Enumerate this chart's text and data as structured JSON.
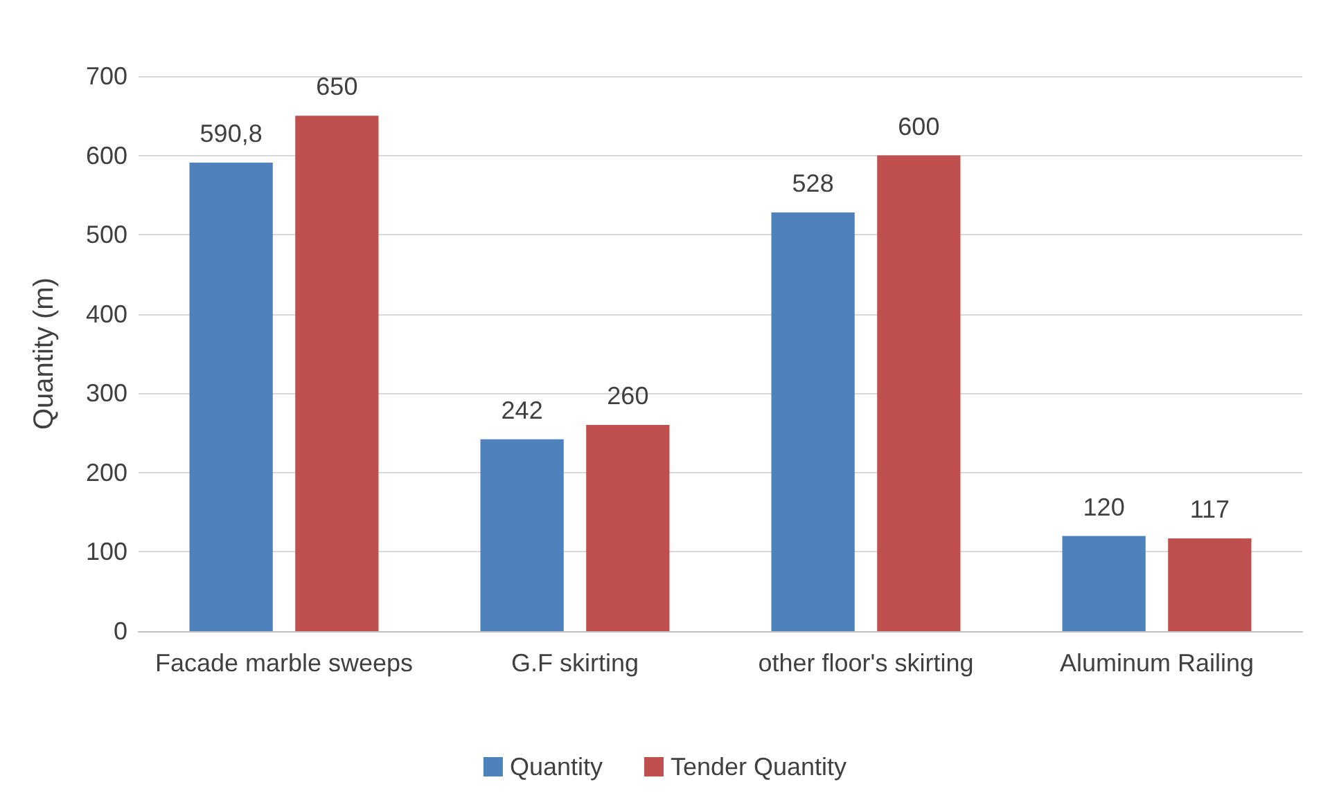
{
  "chart_data": {
    "type": "bar",
    "ylabel": "Quantity (m)",
    "categories": [
      "Facade marble sweeps",
      "G.F skirting",
      "other floor's skirting",
      "Aluminum Railing"
    ],
    "series": [
      {
        "name": "Quantity",
        "color": "#4f81bd",
        "values": [
          590.8,
          242,
          528,
          120
        ],
        "value_labels": [
          "590,8",
          "242",
          "528",
          "120"
        ]
      },
      {
        "name": "Tender Quantity",
        "color": "#c0504d",
        "values": [
          650,
          260,
          600,
          117
        ],
        "value_labels": [
          "650",
          "260",
          "600",
          "117"
        ]
      }
    ],
    "ylim": [
      0,
      700
    ],
    "yticks": [
      0,
      100,
      200,
      300,
      400,
      500,
      600,
      700
    ],
    "grid": "y",
    "legend": "bottom"
  }
}
